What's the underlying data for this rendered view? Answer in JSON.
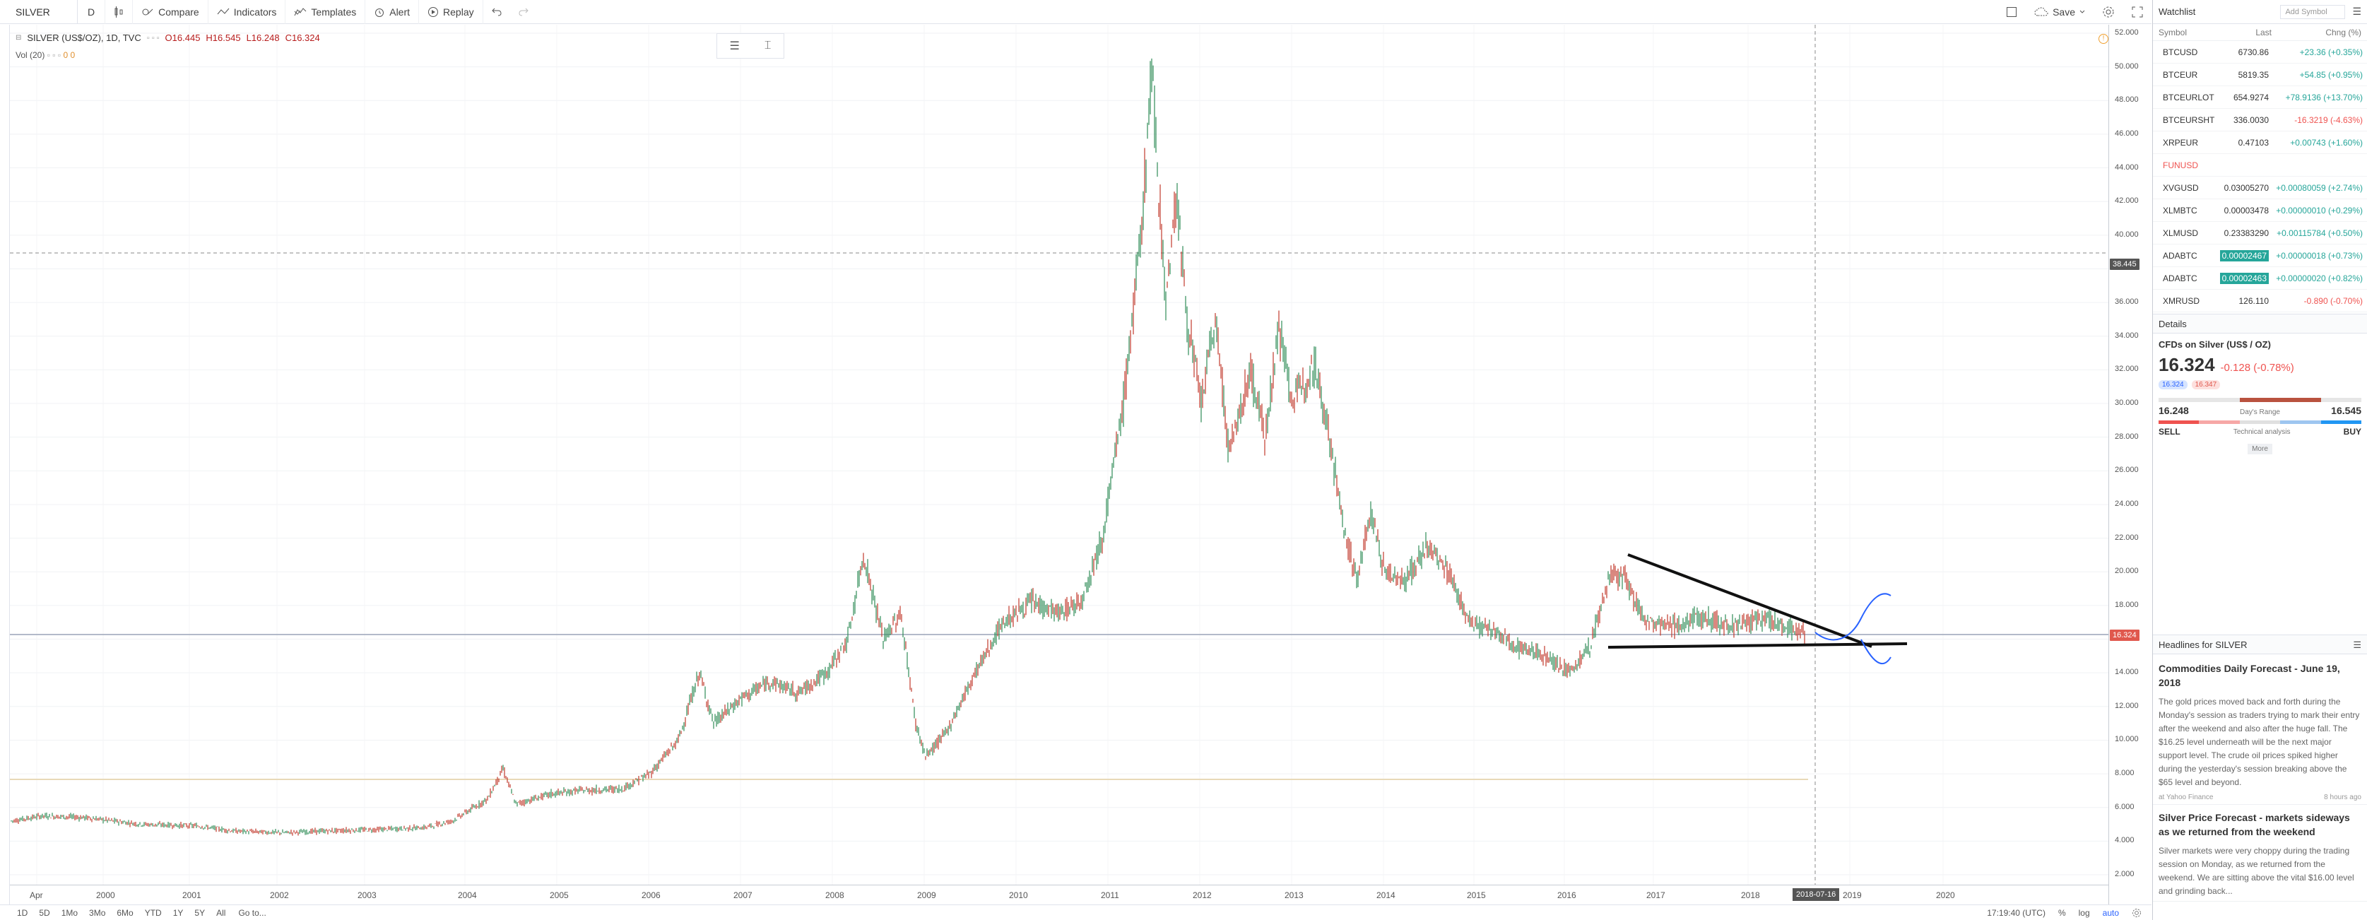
{
  "toolbar": {
    "symbol": "SILVER",
    "interval": "D",
    "compare": "Compare",
    "indicators": "Indicators",
    "templates": "Templates",
    "alert": "Alert",
    "replay": "Replay",
    "save": "Save"
  },
  "legend": {
    "title": "SILVER (US$/OZ), 1D, TVC",
    "open": "O16.445",
    "high": "H16.545",
    "low": "L16.248",
    "close": "C16.324",
    "vol": "Vol (20)",
    "vol_values": "0 0"
  },
  "price_axis": {
    "labels": [
      "52.000",
      "50.000",
      "48.000",
      "46.000",
      "44.000",
      "42.000",
      "40.000",
      "38.000",
      "36.000",
      "34.000",
      "32.000",
      "30.000",
      "28.000",
      "26.000",
      "24.000",
      "22.000",
      "20.000",
      "18.000",
      "16.000",
      "14.000",
      "12.000",
      "10.000",
      "8.000",
      "6.000",
      "4.000",
      "2.000"
    ],
    "crosshair_price": "38.445",
    "last_price": "16.324"
  },
  "time_axis": {
    "labels": [
      "Apr",
      "2000",
      "2001",
      "2002",
      "2003",
      "2004",
      "2005",
      "2006",
      "2007",
      "2008",
      "2009",
      "2010",
      "2011",
      "2012",
      "2013",
      "2014",
      "2015",
      "2016",
      "2017",
      "2018",
      "2019",
      "2020"
    ],
    "crosshair_date": "2018-07-16"
  },
  "bottom_bar": {
    "ranges": [
      "1D",
      "5D",
      "1Mo",
      "3Mo",
      "6Mo",
      "YTD",
      "1Y",
      "5Y",
      "All"
    ],
    "goto": "Go to...",
    "clock": "17:19:40 (UTC)",
    "percent": "%",
    "log": "log",
    "auto": "auto"
  },
  "watchlist": {
    "title": "Watchlist",
    "add_symbol": "Add Symbol",
    "col_symbol": "Symbol",
    "col_last": "Last",
    "col_chg": "Chng (%)",
    "rows": [
      {
        "sym": "BTCUSD",
        "last": "6730.86",
        "chg": "+23.36 (+0.35%)",
        "dir": "pos"
      },
      {
        "sym": "BTCEUR",
        "last": "5819.35",
        "chg": "+54.85 (+0.95%)",
        "dir": "pos"
      },
      {
        "sym": "BTCEURLOT",
        "last": "654.9274",
        "chg": "+78.9136 (+13.70%)",
        "dir": "pos"
      },
      {
        "sym": "BTCEURSHT",
        "last": "336.0030",
        "chg": "-16.3219 (-4.63%)",
        "dir": "neg"
      },
      {
        "sym": "XRPEUR",
        "last": "0.47103",
        "chg": "+0.00743 (+1.60%)",
        "dir": "pos"
      },
      {
        "sym": "FUNUSD",
        "last": "",
        "chg": "",
        "dir": "neg"
      },
      {
        "sym": "XVGUSD",
        "last": "0.03005270",
        "chg": "+0.00080059 (+2.74%)",
        "dir": "pos"
      },
      {
        "sym": "XLMBTC",
        "last": "0.00003478",
        "chg": "+0.00000010 (+0.29%)",
        "dir": "pos"
      },
      {
        "sym": "XLMUSD",
        "last": "0.23383290",
        "chg": "+0.00115784 (+0.50%)",
        "dir": "pos"
      },
      {
        "sym": "ADABTC",
        "last": "0.00002467",
        "chg": "+0.00000018 (+0.73%)",
        "dir": "pos",
        "highlight": true
      },
      {
        "sym": "ADABTC",
        "last": "0.00002463",
        "chg": "+0.00000020 (+0.82%)",
        "dir": "pos",
        "highlight": true
      },
      {
        "sym": "XMRUSD",
        "last": "126.110",
        "chg": "-0.890 (-0.70%)",
        "dir": "neg"
      }
    ]
  },
  "details": {
    "title": "Details",
    "name": "CFDs on Silver (US$ / OZ)",
    "price": "16.324",
    "change": "-0.128 (-0.78%)",
    "bid": "16.324",
    "ask": "16.347",
    "day_low": "16.248",
    "day_high": "16.545",
    "range_label": "Day's Range",
    "sell": "SELL",
    "buy": "BUY",
    "ta_label": "Technical analysis",
    "more": "More"
  },
  "headlines": {
    "title": "Headlines for SILVER",
    "items": [
      {
        "title": "Commodities Daily Forecast - June 19, 2018",
        "body": "The gold prices moved back and forth during the Monday's session as traders trying to mark their entry after the weekend and also after the huge fall. The $16.25 level underneath will be the next major support level. The crude oil prices spiked higher during the yesterday's session breaking above the $65 level and beyond.",
        "source": "at Yahoo Finance",
        "age": "8 hours ago"
      },
      {
        "title": "Silver Price Forecast - markets sideways as we returned from the weekend",
        "body": "Silver markets were very choppy during the trading session on Monday, as we returned from the weekend. We are sitting above the vital $16.00 level and grinding back..."
      }
    ]
  }
}
